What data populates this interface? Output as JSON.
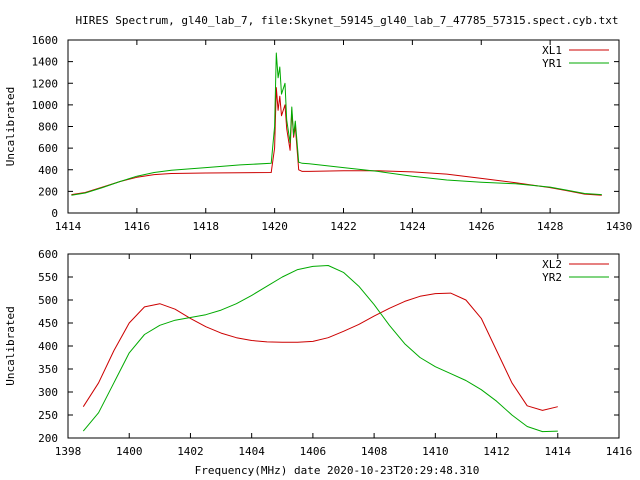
{
  "figure": {
    "title": "HIRES Spectrum, gl40_lab_7, file:Skynet_59145_gl40_lab_7_47785_57315.spect.cyb.txt",
    "xlabel": "Frequency(MHz) date 2020-10-23T20:29:48.310"
  },
  "colors": {
    "red": "#cc0000",
    "green": "#00aa00"
  },
  "chart_data": [
    {
      "type": "line",
      "ylabel": "Uncalibrated",
      "xlim": [
        1414,
        1430
      ],
      "ylim": [
        0,
        1600
      ],
      "xticks": [
        1414,
        1416,
        1418,
        1420,
        1422,
        1424,
        1426,
        1428,
        1430
      ],
      "yticks": [
        0,
        200,
        400,
        600,
        800,
        1000,
        1200,
        1400,
        1600
      ],
      "legend_position": "top-right",
      "series": [
        {
          "name": "XL1",
          "color": "#cc0000",
          "x": [
            1414.1,
            1414.5,
            1415,
            1415.5,
            1416,
            1416.5,
            1417,
            1418,
            1419,
            1419.9,
            1420.0,
            1420.05,
            1420.1,
            1420.15,
            1420.2,
            1420.3,
            1420.35,
            1420.45,
            1420.5,
            1420.55,
            1420.6,
            1420.7,
            1420.8,
            1421,
            1422,
            1423,
            1424,
            1425,
            1426,
            1427,
            1428,
            1428.5,
            1429,
            1429.5
          ],
          "y": [
            170,
            190,
            240,
            290,
            330,
            355,
            365,
            370,
            372,
            375,
            600,
            1160,
            950,
            1080,
            900,
            1000,
            780,
            580,
            950,
            700,
            800,
            400,
            385,
            385,
            390,
            390,
            380,
            360,
            320,
            280,
            235,
            205,
            175,
            165
          ]
        },
        {
          "name": "YR1",
          "color": "#00aa00",
          "x": [
            1414.1,
            1414.5,
            1415,
            1415.5,
            1416,
            1416.5,
            1417,
            1418,
            1419,
            1419.9,
            1420.0,
            1420.05,
            1420.1,
            1420.15,
            1420.2,
            1420.3,
            1420.35,
            1420.45,
            1420.5,
            1420.55,
            1420.6,
            1420.7,
            1420.8,
            1421,
            1422,
            1423,
            1424,
            1425,
            1426,
            1427,
            1428,
            1428.5,
            1429,
            1429.5
          ],
          "y": [
            165,
            185,
            235,
            290,
            340,
            375,
            395,
            420,
            445,
            460,
            800,
            1480,
            1250,
            1350,
            1100,
            1200,
            860,
            650,
            980,
            720,
            850,
            470,
            460,
            455,
            420,
            385,
            340,
            305,
            285,
            270,
            240,
            210,
            180,
            170
          ]
        }
      ]
    },
    {
      "type": "line",
      "ylabel": "Uncalibrated",
      "xlim": [
        1398,
        1416
      ],
      "ylim": [
        200,
        600
      ],
      "xticks": [
        1398,
        1400,
        1402,
        1404,
        1406,
        1408,
        1410,
        1412,
        1414,
        1416
      ],
      "yticks": [
        200,
        250,
        300,
        350,
        400,
        450,
        500,
        550,
        600
      ],
      "legend_position": "top-right",
      "series": [
        {
          "name": "XL2",
          "color": "#cc0000",
          "x": [
            1398.5,
            1399,
            1399.5,
            1400,
            1400.5,
            1401,
            1401.5,
            1402,
            1402.5,
            1403,
            1403.5,
            1404,
            1404.5,
            1405,
            1405.5,
            1406,
            1406.5,
            1407,
            1407.5,
            1408,
            1408.5,
            1409,
            1409.5,
            1410,
            1410.5,
            1411,
            1411.5,
            1412,
            1412.5,
            1413,
            1413.5,
            1414
          ],
          "y": [
            268,
            320,
            390,
            450,
            485,
            492,
            480,
            460,
            442,
            428,
            418,
            412,
            409,
            408,
            408,
            410,
            418,
            432,
            447,
            465,
            482,
            497,
            508,
            514,
            515,
            500,
            460,
            390,
            320,
            270,
            260,
            268
          ]
        },
        {
          "name": "YR2",
          "color": "#00aa00",
          "x": [
            1398.5,
            1399,
            1399.5,
            1400,
            1400.5,
            1401,
            1401.5,
            1402,
            1402.5,
            1403,
            1403.5,
            1404,
            1404.5,
            1405,
            1405.5,
            1406,
            1406.5,
            1407,
            1407.5,
            1408,
            1408.5,
            1409,
            1409.5,
            1410,
            1410.5,
            1411,
            1411.5,
            1412,
            1412.5,
            1413,
            1413.5,
            1414
          ],
          "y": [
            215,
            255,
            320,
            385,
            425,
            445,
            456,
            462,
            468,
            478,
            492,
            510,
            530,
            550,
            566,
            573,
            575,
            560,
            530,
            490,
            445,
            405,
            375,
            355,
            340,
            325,
            305,
            280,
            250,
            225,
            214,
            215
          ]
        }
      ]
    }
  ]
}
